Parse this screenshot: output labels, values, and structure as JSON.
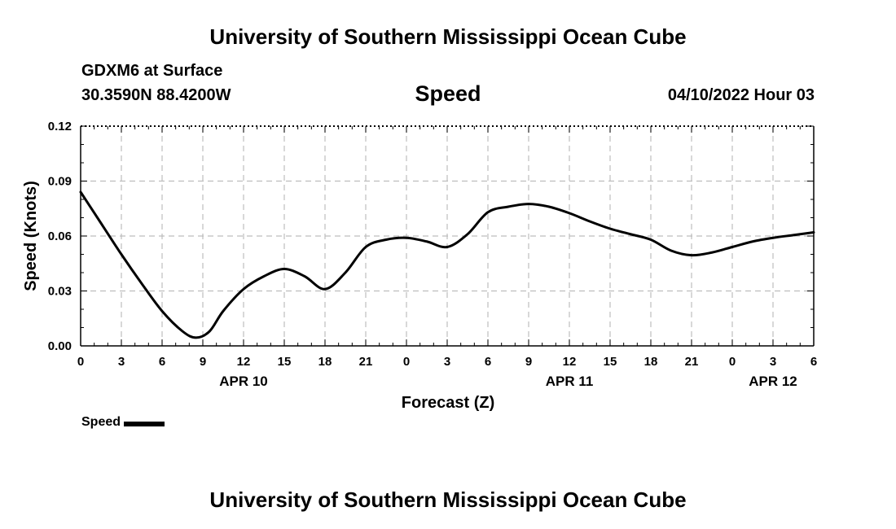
{
  "header": {
    "title": "University of Southern Mississippi Ocean Cube",
    "station": "GDXM6 at Surface",
    "coordinates": "30.3590N  88.4200W",
    "chart_name": "Speed",
    "datetime": "04/10/2022 Hour 03"
  },
  "footer": {
    "title": "University of Southern Mississippi Ocean Cube"
  },
  "legend": {
    "label": "Speed",
    "color": "#000000"
  },
  "chart_data": {
    "type": "line",
    "title": "Speed",
    "xlabel": "Forecast (Z)",
    "ylabel": "Speed (Knots)",
    "ylim": [
      0,
      0.12
    ],
    "xlim": [
      0,
      54
    ],
    "x_unit": "hours",
    "y_ticks": [
      "0.00",
      "0.03",
      "0.06",
      "0.09",
      "0.12"
    ],
    "x_ticks": [
      "0",
      "3",
      "6",
      "9",
      "12",
      "15",
      "18",
      "21",
      "0",
      "3",
      "6",
      "9",
      "12",
      "15",
      "18",
      "21",
      "0",
      "3",
      "6"
    ],
    "date_labels": [
      {
        "text": "APR 10",
        "at_tick": 4
      },
      {
        "text": "APR 11",
        "at_tick": 12
      },
      {
        "text": "APR 12",
        "at_tick": 17
      }
    ],
    "grid": true,
    "legend_position": "bottom-left",
    "series": [
      {
        "name": "Speed",
        "color": "#000000",
        "x": [
          0,
          1.5,
          3,
          4.5,
          6,
          7.5,
          8.5,
          9.5,
          10.5,
          12,
          13.5,
          15,
          16.5,
          18,
          19.5,
          21,
          22.5,
          24,
          25.5,
          27,
          28.5,
          30,
          31.5,
          33,
          34.5,
          36,
          37.5,
          39,
          40.5,
          42,
          43.5,
          45,
          46.5,
          48,
          49.5,
          51,
          52.5,
          54
        ],
        "values": [
          0.084,
          0.067,
          0.05,
          0.034,
          0.019,
          0.008,
          0.0045,
          0.008,
          0.019,
          0.031,
          0.038,
          0.042,
          0.038,
          0.031,
          0.04,
          0.054,
          0.058,
          0.059,
          0.057,
          0.054,
          0.061,
          0.073,
          0.076,
          0.0775,
          0.076,
          0.0725,
          0.068,
          0.064,
          0.061,
          0.058,
          0.052,
          0.0495,
          0.051,
          0.054,
          0.057,
          0.059,
          0.0605,
          0.062
        ]
      }
    ]
  }
}
